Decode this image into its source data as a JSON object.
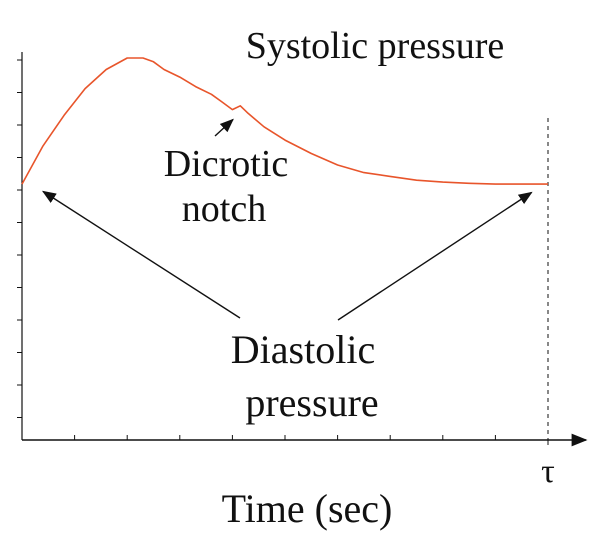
{
  "chart_data": {
    "type": "line",
    "title": "",
    "xlabel": "Time (sec)",
    "ylabel": "",
    "x_tick_labels": [
      {
        "x": 1.0,
        "label": "τ"
      }
    ],
    "xlim": [
      0,
      1.0
    ],
    "ylim": [
      0,
      1.0
    ],
    "grid": false,
    "series": [
      {
        "color": "#e8552b",
        "x": [
          0,
          0.04,
          0.08,
          0.12,
          0.16,
          0.2,
          0.23,
          0.25,
          0.27,
          0.3,
          0.33,
          0.36,
          0.38,
          0.4,
          0.415,
          0.43,
          0.46,
          0.5,
          0.55,
          0.6,
          0.65,
          0.7,
          0.75,
          0.8,
          0.85,
          0.9,
          0.95,
          1.0
        ],
        "y": [
          0.67,
          0.77,
          0.85,
          0.92,
          0.97,
          1.0,
          1.0,
          0.99,
          0.97,
          0.95,
          0.925,
          0.905,
          0.885,
          0.865,
          0.875,
          0.855,
          0.82,
          0.785,
          0.75,
          0.72,
          0.7,
          0.69,
          0.68,
          0.675,
          0.672,
          0.67,
          0.67,
          0.67
        ]
      }
    ],
    "annotations": [
      {
        "id": "systolic",
        "lines": [
          "Systolic pressure"
        ],
        "target": [
          0.23,
          1.0
        ],
        "arrow": false
      },
      {
        "id": "notch",
        "lines": [
          "Dicrotic",
          "notch"
        ],
        "target": [
          0.4,
          0.865
        ],
        "arrow": true
      },
      {
        "id": "diastolic",
        "lines": [
          "Diastolic",
          "pressure"
        ],
        "targets": [
          [
            0.025,
            0.64
          ],
          [
            0.98,
            0.64
          ]
        ],
        "arrow": true
      }
    ]
  }
}
